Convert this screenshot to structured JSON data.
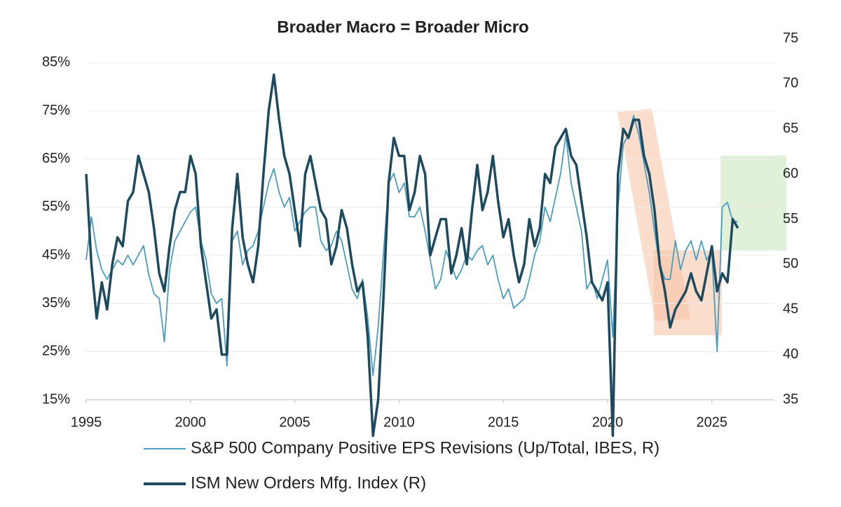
{
  "chart_data": {
    "type": "line",
    "title": "Broader Macro = Broader Micro",
    "x": [
      1995,
      1995.25,
      1995.5,
      1995.75,
      1996,
      1996.25,
      1996.5,
      1996.75,
      1997,
      1997.25,
      1997.5,
      1997.75,
      1998,
      1998.25,
      1998.5,
      1998.75,
      1999,
      1999.25,
      1999.5,
      1999.75,
      2000,
      2000.25,
      2000.5,
      2000.75,
      2001,
      2001.25,
      2001.5,
      2001.75,
      2002,
      2002.25,
      2002.5,
      2002.75,
      2003,
      2003.25,
      2003.5,
      2003.75,
      2004,
      2004.25,
      2004.5,
      2004.75,
      2005,
      2005.25,
      2005.5,
      2005.75,
      2006,
      2006.25,
      2006.5,
      2006.75,
      2007,
      2007.25,
      2007.5,
      2007.75,
      2008,
      2008.25,
      2008.5,
      2008.75,
      2009,
      2009.25,
      2009.5,
      2009.75,
      2010,
      2010.25,
      2010.5,
      2010.75,
      2011,
      2011.25,
      2011.5,
      2011.75,
      2012,
      2012.25,
      2012.5,
      2012.75,
      2013,
      2013.25,
      2013.5,
      2013.75,
      2014,
      2014.25,
      2014.5,
      2014.75,
      2015,
      2015.25,
      2015.5,
      2015.75,
      2016,
      2016.25,
      2016.5,
      2016.75,
      2017,
      2017.25,
      2017.5,
      2017.75,
      2018,
      2018.25,
      2018.5,
      2018.75,
      2019,
      2019.25,
      2019.5,
      2019.75,
      2020,
      2020.25,
      2020.5,
      2020.75,
      2021,
      2021.25,
      2021.5,
      2021.75,
      2022,
      2022.25,
      2022.5,
      2022.75,
      2023,
      2023.25,
      2023.5,
      2023.75,
      2024,
      2024.25,
      2024.5,
      2024.75,
      2025,
      2025.25,
      2025.5,
      2025.75,
      2026,
      2026.25
    ],
    "xlim": [
      1995,
      2028
    ],
    "xticks": [
      1995,
      2000,
      2005,
      2010,
      2015,
      2020,
      2025
    ],
    "ylim": [
      15,
      90
    ],
    "yticks": [
      {
        "value": 15,
        "label": "15%"
      },
      {
        "value": 25,
        "label": "25%"
      },
      {
        "value": 35,
        "label": "35%"
      },
      {
        "value": 45,
        "label": "45%"
      },
      {
        "value": 55,
        "label": "55%"
      },
      {
        "value": 65,
        "label": "65%"
      },
      {
        "value": 75,
        "label": "75%"
      },
      {
        "value": 85,
        "label": "85%"
      }
    ],
    "y2lim": [
      35,
      75
    ],
    "y2ticks": [
      35,
      40,
      45,
      50,
      55,
      60,
      65,
      70,
      75
    ],
    "grid": true,
    "series": [
      {
        "name": "S&P 500 Company Positive EPS Revisions (Up/Total, IBES, R)",
        "color": "#4a9cc0",
        "values": [
          44,
          53,
          46,
          42,
          40,
          42,
          44,
          43,
          45,
          43,
          45,
          47,
          41,
          37,
          36,
          27,
          42,
          48,
          50,
          52,
          54,
          55,
          48,
          44,
          37,
          35,
          36,
          22,
          48,
          50,
          43,
          46,
          47,
          50,
          55,
          60,
          63,
          58,
          55,
          57,
          50,
          52,
          54,
          55,
          55,
          48,
          46,
          47,
          50,
          48,
          43,
          38,
          36,
          40,
          32,
          20,
          30,
          45,
          60,
          62,
          58,
          60,
          53,
          53,
          55,
          50,
          44,
          38,
          40,
          46,
          43,
          40,
          42,
          45,
          44,
          46,
          47,
          43,
          45,
          40,
          36,
          38,
          34,
          35,
          36,
          40,
          45,
          48,
          55,
          52,
          57,
          62,
          70,
          60,
          55,
          50,
          38,
          40,
          36,
          40,
          44,
          28,
          55,
          68,
          70,
          74,
          70,
          64,
          58,
          50,
          43,
          40,
          40,
          48,
          42,
          46,
          48,
          44,
          48,
          44,
          46,
          25,
          55,
          56,
          52,
          52
        ]
      },
      {
        "name": "ISM New Orders Mfg. Index (R)",
        "color": "#1d4a5e",
        "axis": "y2",
        "values": [
          60,
          50,
          44,
          48,
          45,
          50,
          53,
          52,
          57,
          58,
          62,
          60,
          58,
          54,
          49,
          47,
          52,
          56,
          58,
          58,
          62,
          60,
          52,
          48,
          44,
          45,
          40,
          40,
          54,
          60,
          53,
          50,
          48,
          52,
          60,
          67,
          71,
          66,
          62,
          60,
          56,
          52,
          60,
          62,
          59,
          56,
          55,
          50,
          52,
          56,
          54,
          50,
          47,
          48,
          42,
          31,
          35,
          46,
          59,
          64,
          62,
          62,
          56,
          58,
          62,
          60,
          51,
          53,
          55,
          55,
          49,
          51,
          54,
          50,
          56,
          61,
          56,
          58,
          62,
          57,
          53,
          55,
          51,
          48,
          50,
          55,
          52,
          54,
          60,
          59,
          63,
          64,
          65,
          62,
          61,
          57,
          53,
          48,
          47,
          46,
          48,
          31,
          60,
          65,
          64,
          66,
          66,
          62,
          60,
          56,
          50,
          47,
          43,
          45,
          46,
          47,
          49,
          47,
          46,
          49,
          52,
          47,
          49,
          48,
          55,
          54
        ]
      }
    ]
  }
}
